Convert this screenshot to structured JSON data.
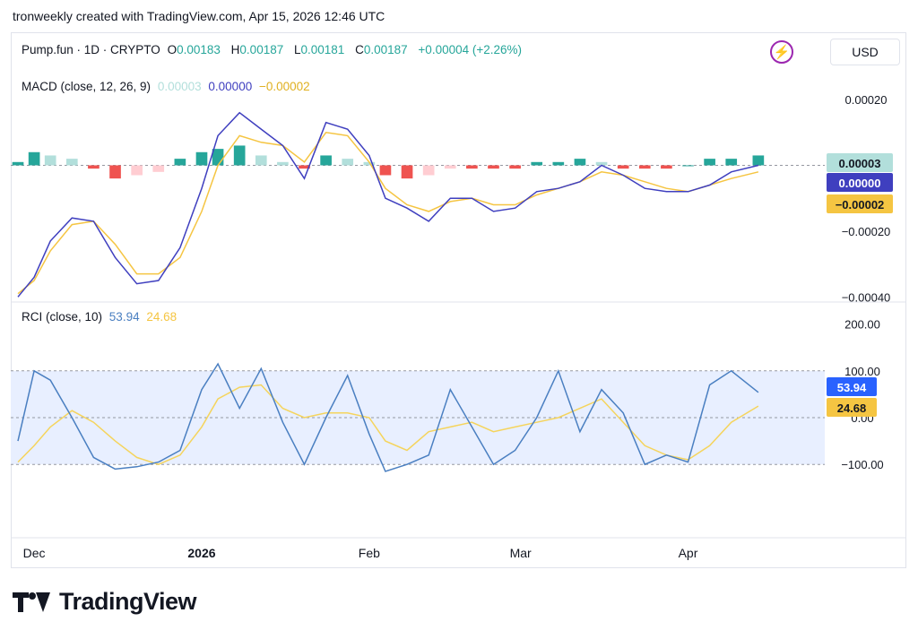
{
  "caption": "tronweekly created with TradingView.com, Apr 15, 2026 12:46 UTC",
  "header": {
    "symbol": "Pump.fun · 1D · CRYPTO",
    "o_label": "O",
    "o_value": "0.00183",
    "h_label": "H",
    "h_value": "0.00187",
    "l_label": "L",
    "l_value": "0.00181",
    "c_label": "C",
    "c_value": "0.00187",
    "change": "+0.00004 (+2.26%)",
    "currency": "USD",
    "flash_icon": "lightning-icon"
  },
  "macd_legend": {
    "name": "MACD (close, 12, 26, 9)",
    "hist": "0.00003",
    "macd": "0.00000",
    "signal": "−0.00002"
  },
  "rci_legend": {
    "name": "RCI (close, 10)",
    "rci": "53.94",
    "smooth": "24.68"
  },
  "branding": {
    "logo_text": "TradingView"
  },
  "colors": {
    "teal": "#26a69a",
    "teal_light": "#b2dfdb",
    "red": "#ef5350",
    "red_light": "#ffcdd2",
    "macd_line": "#3f3fbf",
    "signal_line": "#f5c542",
    "rci_line": "#4a7fc1",
    "rci_smooth": "#f5d45c",
    "band_fill": "#e8efff"
  },
  "chart_data": [
    {
      "type": "line",
      "title": "MACD (close, 12, 26, 9)",
      "y_ticks": [
        "0.00020",
        "−0.00020",
        "−0.00040"
      ],
      "y_tick_values": [
        0.0002,
        -0.0002,
        -0.0004
      ],
      "ylim": [
        -0.00041,
        0.00029
      ],
      "last_value_labels": [
        {
          "text": "0.00003",
          "value": 3e-05,
          "series": "hist"
        },
        {
          "text": "0.00000",
          "value": 0.0,
          "series": "macd"
        },
        {
          "text": "−0.00002",
          "value": -2e-05,
          "series": "signal"
        }
      ],
      "x_dates": [
        "2025-11-28",
        "2025-12-01",
        "2025-12-04",
        "2025-12-08",
        "2025-12-12",
        "2025-12-16",
        "2025-12-20",
        "2025-12-24",
        "2025-12-28",
        "2026-01-01",
        "2026-01-04",
        "2026-01-08",
        "2026-01-12",
        "2026-01-16",
        "2026-01-20",
        "2026-01-24",
        "2026-01-28",
        "2026-02-01",
        "2026-02-04",
        "2026-02-08",
        "2026-02-12",
        "2026-02-16",
        "2026-02-20",
        "2026-02-24",
        "2026-02-28",
        "2026-03-04",
        "2026-03-08",
        "2026-03-12",
        "2026-03-16",
        "2026-03-20",
        "2026-03-24",
        "2026-03-28",
        "2026-04-01",
        "2026-04-05",
        "2026-04-09",
        "2026-04-14"
      ],
      "macd": [
        -0.0004,
        -0.00034,
        -0.00023,
        -0.00016,
        -0.00017,
        -0.00028,
        -0.00036,
        -0.00035,
        -0.00025,
        -7e-05,
        9e-05,
        0.00016,
        0.00011,
        6e-05,
        -4e-05,
        0.00013,
        0.00011,
        3e-05,
        -0.0001,
        -0.00013,
        -0.00017,
        -0.0001,
        -0.0001,
        -0.00014,
        -0.00013,
        -8e-05,
        -7e-05,
        -5e-05,
        0.0,
        -3e-05,
        -7e-05,
        -8e-05,
        -8e-05,
        -6e-05,
        -2e-05,
        0.0
      ],
      "signal": [
        -0.00039,
        -0.00035,
        -0.00026,
        -0.00018,
        -0.00017,
        -0.00024,
        -0.00033,
        -0.00033,
        -0.00028,
        -0.00014,
        0.0,
        9e-05,
        7e-05,
        6e-05,
        1e-05,
        0.0001,
        9e-05,
        1e-05,
        -7e-05,
        -0.00012,
        -0.00014,
        -0.00011,
        -0.0001,
        -0.00012,
        -0.00012,
        -9e-05,
        -7e-05,
        -5e-05,
        -2e-05,
        -3e-05,
        -5e-05,
        -7e-05,
        -8e-05,
        -6e-05,
        -4e-05,
        -2e-05
      ],
      "histogram": [
        1e-05,
        4e-05,
        3e-05,
        2e-05,
        -1e-05,
        -4e-05,
        -3e-05,
        -2e-05,
        2e-05,
        4e-05,
        5e-05,
        6e-05,
        3e-05,
        1e-05,
        -1e-05,
        3e-05,
        2e-05,
        1e-05,
        -3e-05,
        -4e-05,
        -3e-05,
        -1e-05,
        -1e-05,
        -1e-05,
        -1e-05,
        1e-05,
        1e-05,
        2e-05,
        1e-05,
        -1e-05,
        -1e-05,
        -1e-05,
        0.0,
        2e-05,
        2e-05,
        3e-05
      ]
    },
    {
      "type": "line",
      "title": "RCI (close, 10)",
      "y_ticks": [
        "200.00",
        "100.00",
        "0.00",
        "−100.00"
      ],
      "y_tick_values": [
        200,
        100,
        0,
        -100
      ],
      "ylim": [
        -200,
        200
      ],
      "band": [
        -100,
        100
      ],
      "last_value_labels": [
        {
          "text": "53.94",
          "value": 53.94,
          "series": "rci"
        },
        {
          "text": "24.68",
          "value": 24.68,
          "series": "smooth"
        }
      ],
      "x_dates": [
        "2025-11-28",
        "2025-12-01",
        "2025-12-04",
        "2025-12-08",
        "2025-12-12",
        "2025-12-16",
        "2025-12-20",
        "2025-12-24",
        "2025-12-28",
        "2026-01-01",
        "2026-01-04",
        "2026-01-08",
        "2026-01-12",
        "2026-01-16",
        "2026-01-20",
        "2026-01-24",
        "2026-01-28",
        "2026-02-01",
        "2026-02-04",
        "2026-02-08",
        "2026-02-12",
        "2026-02-16",
        "2026-02-20",
        "2026-02-24",
        "2026-02-28",
        "2026-03-04",
        "2026-03-08",
        "2026-03-12",
        "2026-03-16",
        "2026-03-20",
        "2026-03-24",
        "2026-03-28",
        "2026-04-01",
        "2026-04-05",
        "2026-04-09",
        "2026-04-14"
      ],
      "rci": [
        -50,
        100,
        80,
        0,
        -85,
        -110,
        -105,
        -95,
        -70,
        60,
        115,
        20,
        105,
        -10,
        -100,
        0,
        90,
        -35,
        -115,
        -100,
        -80,
        60,
        -20,
        -100,
        -70,
        0,
        100,
        -30,
        60,
        10,
        -100,
        -80,
        -95,
        70,
        100,
        53.94
      ],
      "smooth": [
        -95,
        -60,
        -20,
        15,
        -10,
        -50,
        -85,
        -100,
        -80,
        -20,
        40,
        65,
        70,
        20,
        0,
        10,
        10,
        0,
        -50,
        -70,
        -30,
        -20,
        -10,
        -30,
        -20,
        -10,
        0,
        20,
        40,
        -10,
        -60,
        -80,
        -90,
        -60,
        -10,
        24.68
      ]
    }
  ],
  "x_axis": {
    "labels": [
      "Dec",
      "2026",
      "Feb",
      "Mar",
      "Apr"
    ],
    "label_dates": [
      "2025-12-01",
      "2026-01-01",
      "2026-02-01",
      "2026-03-01",
      "2026-04-01"
    ]
  }
}
